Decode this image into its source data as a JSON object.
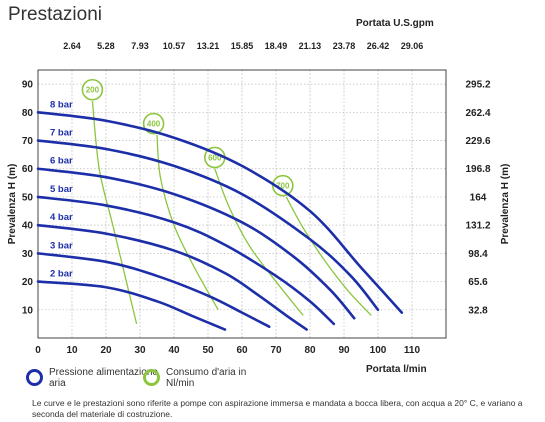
{
  "title": "Prestazioni",
  "chart_data": {
    "type": "line",
    "xlabel": "Portata  l/min",
    "ylabel": "Prevalenza H (m)",
    "xlim": [
      0,
      120
    ],
    "ylim": [
      0,
      95
    ],
    "x_ticks": [
      "0",
      "10",
      "20",
      "30",
      "40",
      "50",
      "60",
      "70",
      "80",
      "90",
      "100",
      "110"
    ],
    "y_ticks": [
      "10",
      "20",
      "30",
      "40",
      "50",
      "60",
      "70",
      "80",
      "90"
    ],
    "top_axis": {
      "label": "Portata U.S.gpm",
      "ticks": [
        "2.64",
        "5.28",
        "7.93",
        "10.57",
        "13.21",
        "15.85",
        "18.49",
        "21.13",
        "23.78",
        "26.42",
        "29.06"
      ]
    },
    "right_axis": {
      "label": "Prevalenza H (m)",
      "ticks": [
        "32.8",
        "65.6",
        "98.4",
        "131.2",
        "164",
        "196.8",
        "229.6",
        "262.4",
        "295.2"
      ]
    },
    "legend": [
      {
        "label": "Pressione alimentazione aria",
        "color": "#1d2fa8"
      },
      {
        "label": "Consumo d'aria in Nl/min",
        "color": "#8cc63f"
      }
    ],
    "pressure_series": [
      {
        "label": "8 bar",
        "color": "#1d2fa8",
        "points": [
          [
            0,
            80
          ],
          [
            20,
            77
          ],
          [
            40,
            71
          ],
          [
            60,
            61
          ],
          [
            80,
            45
          ],
          [
            95,
            25
          ],
          [
            107,
            9
          ]
        ]
      },
      {
        "label": "7 bar",
        "color": "#1d2fa8",
        "points": [
          [
            0,
            70
          ],
          [
            20,
            67
          ],
          [
            40,
            61
          ],
          [
            60,
            51
          ],
          [
            80,
            35
          ],
          [
            92,
            22
          ],
          [
            100,
            10
          ]
        ]
      },
      {
        "label": "6 bar",
        "color": "#1d2fa8",
        "points": [
          [
            0,
            60
          ],
          [
            20,
            57
          ],
          [
            40,
            51
          ],
          [
            60,
            41
          ],
          [
            75,
            29
          ],
          [
            86,
            17
          ],
          [
            93,
            7
          ]
        ]
      },
      {
        "label": "5 bar",
        "color": "#1d2fa8",
        "points": [
          [
            0,
            50
          ],
          [
            20,
            47
          ],
          [
            40,
            41
          ],
          [
            55,
            33
          ],
          [
            70,
            22
          ],
          [
            80,
            13
          ],
          [
            87,
            5
          ]
        ]
      },
      {
        "label": "4 bar",
        "color": "#1d2fa8",
        "points": [
          [
            0,
            40
          ],
          [
            20,
            37
          ],
          [
            40,
            31
          ],
          [
            55,
            23
          ],
          [
            65,
            15
          ],
          [
            73,
            8
          ],
          [
            79,
            3
          ]
        ]
      },
      {
        "label": "3 bar",
        "color": "#1d2fa8",
        "points": [
          [
            0,
            30
          ],
          [
            20,
            27
          ],
          [
            35,
            22
          ],
          [
            50,
            15
          ],
          [
            60,
            9
          ],
          [
            68,
            4
          ]
        ]
      },
      {
        "label": "2 bar",
        "color": "#1d2fa8",
        "points": [
          [
            0,
            20
          ],
          [
            20,
            18
          ],
          [
            35,
            13
          ],
          [
            45,
            8
          ],
          [
            55,
            3
          ]
        ]
      }
    ],
    "air_series": [
      {
        "label": "200",
        "color": "#8cc63f",
        "badge_at": [
          16,
          88
        ],
        "points": [
          [
            16,
            84
          ],
          [
            18,
            60
          ],
          [
            22,
            40
          ],
          [
            26,
            20
          ],
          [
            29,
            5
          ]
        ]
      },
      {
        "label": "400",
        "color": "#8cc63f",
        "badge_at": [
          34,
          76
        ],
        "points": [
          [
            35,
            72
          ],
          [
            36,
            57
          ],
          [
            40,
            40
          ],
          [
            46,
            25
          ],
          [
            53,
            10
          ]
        ]
      },
      {
        "label": "600",
        "color": "#8cc63f",
        "badge_at": [
          52,
          64
        ],
        "points": [
          [
            52,
            60
          ],
          [
            56,
            47
          ],
          [
            62,
            33
          ],
          [
            70,
            20
          ],
          [
            78,
            8
          ]
        ]
      },
      {
        "label": "700",
        "color": "#8cc63f",
        "badge_at": [
          72,
          54
        ],
        "points": [
          [
            73,
            50
          ],
          [
            78,
            39
          ],
          [
            84,
            28
          ],
          [
            91,
            17
          ],
          [
            98,
            8
          ]
        ]
      }
    ]
  }
}
